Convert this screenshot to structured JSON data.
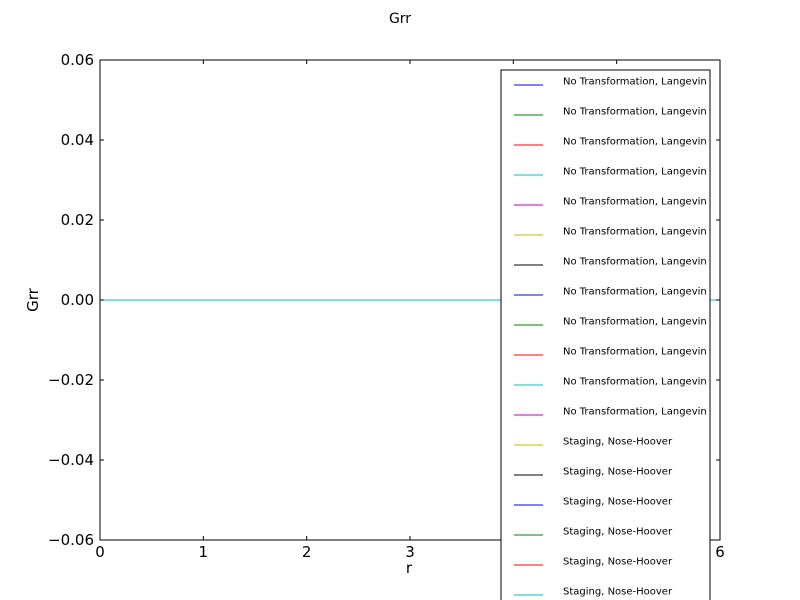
{
  "chart_data": {
    "type": "line",
    "title": "Grr",
    "xlabel": "r",
    "ylabel": "Grr",
    "xlim": [
      0,
      6
    ],
    "ylim": [
      -0.06,
      0.06
    ],
    "x_ticks": [
      0,
      1,
      2,
      3,
      4,
      5,
      6
    ],
    "x_tick_labels": [
      "0",
      "1",
      "2",
      "3",
      "",
      "",
      "6"
    ],
    "y_ticks": [
      0.06,
      0.04,
      0.02,
      0.0,
      -0.02,
      -0.04,
      -0.06
    ],
    "y_tick_labels": [
      "0.06",
      "0.04",
      "0.02",
      "0.00",
      "−0.02",
      "−0.04",
      "−0.06"
    ],
    "grid": false,
    "legend_position": "right",
    "series": [
      {
        "name": "No Transformation, Langevin",
        "color": "#0000ff",
        "x": [
          0,
          6
        ],
        "y": [
          0,
          0
        ]
      },
      {
        "name": "No Transformation, Langevin",
        "color": "#008000",
        "x": [
          0,
          6
        ],
        "y": [
          0,
          0
        ]
      },
      {
        "name": "No Transformation, Langevin",
        "color": "#ff0000",
        "x": [
          0,
          6
        ],
        "y": [
          0,
          0
        ]
      },
      {
        "name": "No Transformation, Langevin",
        "color": "#00bfbf",
        "x": [
          0,
          6
        ],
        "y": [
          0,
          0
        ]
      },
      {
        "name": "No Transformation, Langevin",
        "color": "#bf00bf",
        "x": [
          0,
          6
        ],
        "y": [
          0,
          0
        ]
      },
      {
        "name": "No Transformation, Langevin",
        "color": "#bfbf00",
        "x": [
          0,
          6
        ],
        "y": [
          0,
          0
        ]
      },
      {
        "name": "No Transformation, Langevin",
        "color": "#000000",
        "x": [
          0,
          6
        ],
        "y": [
          0,
          0
        ]
      },
      {
        "name": "No Transformation, Langevin",
        "color": "#0000ff",
        "x": [
          0,
          6
        ],
        "y": [
          0,
          0
        ]
      },
      {
        "name": "No Transformation, Langevin",
        "color": "#008000",
        "x": [
          0,
          6
        ],
        "y": [
          0,
          0
        ]
      },
      {
        "name": "No Transformation, Langevin",
        "color": "#ff0000",
        "x": [
          0,
          6
        ],
        "y": [
          0,
          0
        ]
      },
      {
        "name": "No Transformation, Langevin",
        "color": "#00bfbf",
        "x": [
          0,
          6
        ],
        "y": [
          0,
          0
        ]
      },
      {
        "name": "No Transformation, Langevin",
        "color": "#bf00bf",
        "x": [
          0,
          6
        ],
        "y": [
          0,
          0
        ]
      },
      {
        "name": "Staging, Nose-Hoover",
        "color": "#bfbf00",
        "x": [
          0,
          6
        ],
        "y": [
          0,
          0
        ]
      },
      {
        "name": "Staging, Nose-Hoover",
        "color": "#000000",
        "x": [
          0,
          6
        ],
        "y": [
          0,
          0
        ]
      },
      {
        "name": "Staging, Nose-Hoover",
        "color": "#0000ff",
        "x": [
          0,
          6
        ],
        "y": [
          0,
          0
        ]
      },
      {
        "name": "Staging, Nose-Hoover",
        "color": "#008000",
        "x": [
          0,
          6
        ],
        "y": [
          0,
          0
        ]
      },
      {
        "name": "Staging, Nose-Hoover",
        "color": "#ff0000",
        "x": [
          0,
          6
        ],
        "y": [
          0,
          0
        ]
      },
      {
        "name": "Staging, Nose-Hoover",
        "color": "#00bfbf",
        "x": [
          0,
          6
        ],
        "y": [
          0,
          0
        ]
      }
    ]
  }
}
